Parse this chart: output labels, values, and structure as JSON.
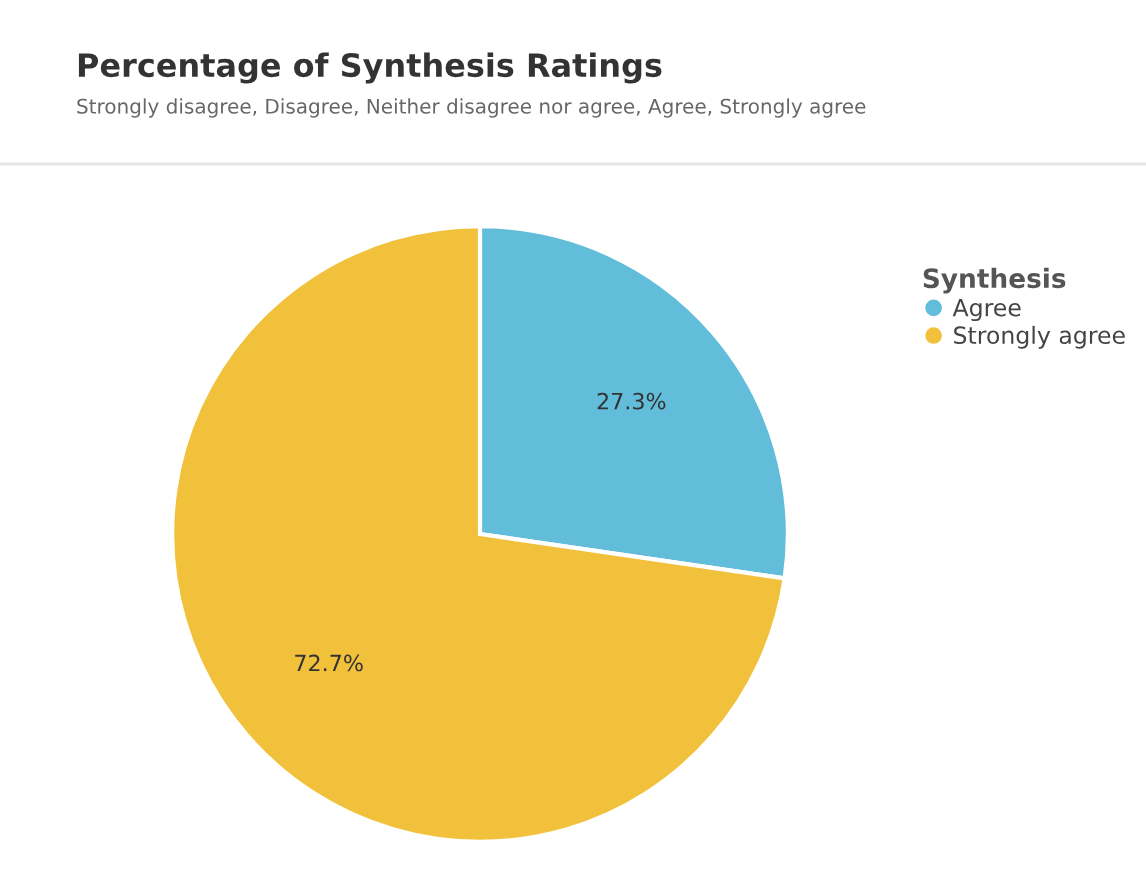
{
  "chart_data": {
    "type": "pie",
    "title": "Percentage of Synthesis Ratings",
    "subtitle": "Strongly disagree, Disagree, Neither disagree nor agree, Agree, Strongly agree",
    "legend_title": "Synthesis",
    "categories": [
      "Agree",
      "Strongly agree"
    ],
    "values": [
      27.3,
      72.7
    ],
    "colors": [
      "#62bddb",
      "#f2c13c"
    ],
    "value_labels": [
      "27.3%",
      "72.7%"
    ],
    "legend": "top right"
  }
}
